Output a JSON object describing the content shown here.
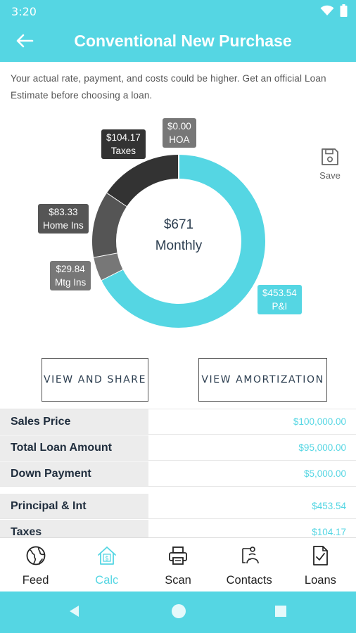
{
  "status": {
    "time": "3:20"
  },
  "header": {
    "title": "Conventional New Purchase"
  },
  "disclaimer": "Your actual rate, payment, and costs could be higher. Get an official Loan Estimate before choosing a loan.",
  "chart_data": {
    "type": "pie",
    "style": "donut",
    "center_value": "$671",
    "center_label": "Monthly",
    "slices": [
      {
        "value": 453.54,
        "amount": "$453.54",
        "label": "P&I",
        "color": "#55d6e3"
      },
      {
        "value": 29.84,
        "amount": "$29.84",
        "label": "Mtg Ins",
        "color": "#777777"
      },
      {
        "value": 83.33,
        "amount": "$83.33",
        "label": "Home Ins",
        "color": "#555555"
      },
      {
        "value": 104.17,
        "amount": "$104.17",
        "label": "Taxes",
        "color": "#333333"
      },
      {
        "value": 0.0,
        "amount": "$0.00",
        "label": "HOA",
        "color": "#777777"
      }
    ]
  },
  "save": {
    "label": "Save"
  },
  "buttons": {
    "share": "VIEW AND SHARE",
    "amortization": "VIEW AMORTIZATION"
  },
  "table": {
    "rows": [
      {
        "label": "Sales Price",
        "value": "$100,000.00"
      },
      {
        "label": "Total Loan Amount",
        "value": "$95,000.00"
      },
      {
        "label": "Down Payment",
        "value": "$5,000.00"
      },
      {
        "label": "Principal & Int",
        "value": "$453.54"
      },
      {
        "label": "Taxes",
        "value": "$104.17"
      }
    ]
  },
  "nav": {
    "items": [
      {
        "label": "Feed",
        "icon": "globe-icon"
      },
      {
        "label": "Calc",
        "icon": "house-dollar-icon"
      },
      {
        "label": "Scan",
        "icon": "printer-icon"
      },
      {
        "label": "Contacts",
        "icon": "contacts-icon"
      },
      {
        "label": "Loans",
        "icon": "document-check-icon"
      }
    ],
    "active": "Calc"
  },
  "colors": {
    "accent": "#55d6e3",
    "dark": "#333333",
    "mid": "#555555",
    "light": "#777777"
  }
}
